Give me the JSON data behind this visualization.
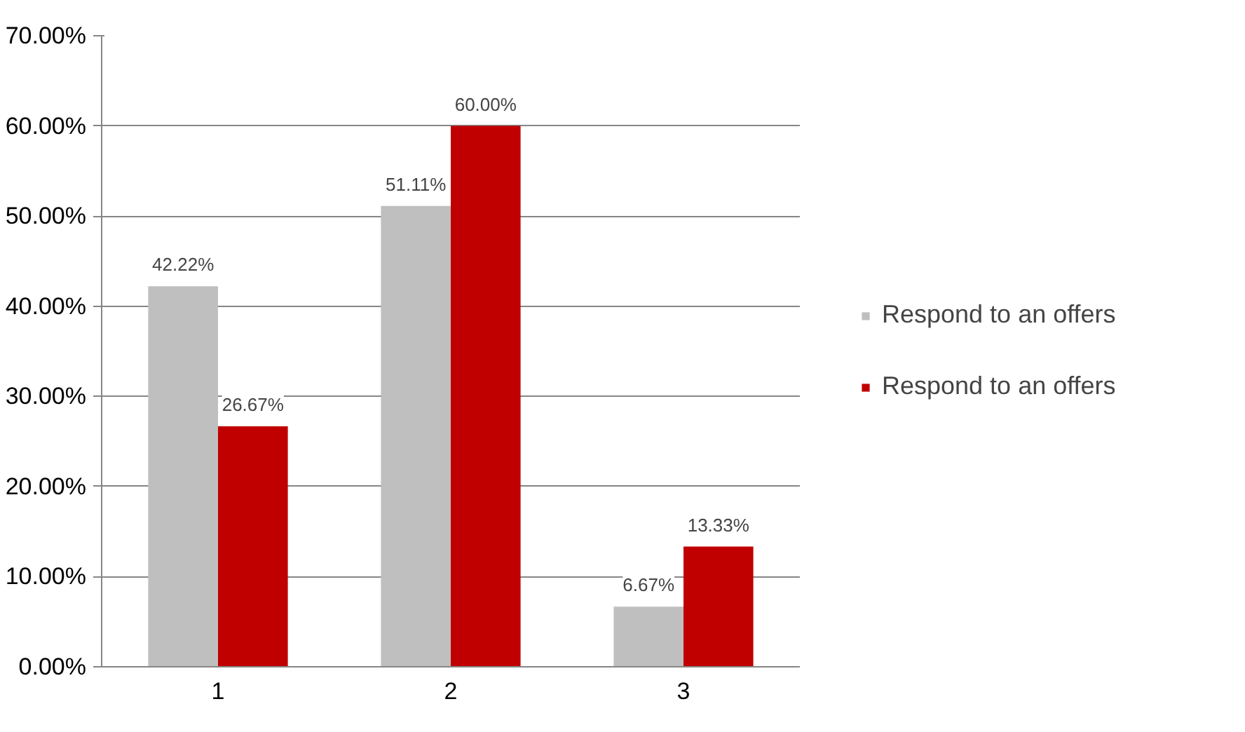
{
  "chart_data": {
    "type": "bar",
    "categories": [
      "1",
      "2",
      "3"
    ],
    "series": [
      {
        "name": "Respond to an offers",
        "color": "#bfbfbf",
        "values": [
          42.22,
          51.11,
          6.67
        ],
        "value_labels": [
          "42.22%",
          "51.11%",
          "6.67%"
        ]
      },
      {
        "name": "Respond to an offers",
        "color": "#c00000",
        "values": [
          26.67,
          60.0,
          13.33
        ],
        "value_labels": [
          "26.67%",
          "60.00%",
          "13.33%"
        ]
      }
    ],
    "ylim": [
      0,
      70
    ],
    "yticks": [
      {
        "value": 0,
        "label": "0.00%"
      },
      {
        "value": 10,
        "label": "10.00%"
      },
      {
        "value": 20,
        "label": "20.00%"
      },
      {
        "value": 30,
        "label": "30.00%"
      },
      {
        "value": 40,
        "label": "40.00%"
      },
      {
        "value": 50,
        "label": "50.00%"
      },
      {
        "value": 60,
        "label": "60.00%"
      },
      {
        "value": 70,
        "label": "70.00%"
      }
    ],
    "grid": "y",
    "legend": "right"
  }
}
